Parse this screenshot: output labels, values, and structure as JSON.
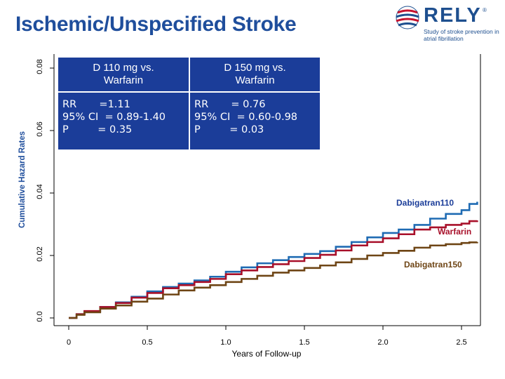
{
  "header": {
    "title": "Ischemic/Unspecified Stroke"
  },
  "logo": {
    "word": "RELY",
    "reg": "®",
    "tagline": "Study of stroke prevention in atrial fibrillation"
  },
  "colors": {
    "title": "#1f4e9c",
    "box": "#1b3d99",
    "dabigatran110": "#1f6bb3",
    "warfarin": "#a8102a",
    "dabigatran150": "#6e4515"
  },
  "boxes": [
    {
      "heading": "D 110 mg vs.\nWarfarin",
      "body": "RR       =1.11\n95% CI  = 0.89-1.40\nP         = 0.35"
    },
    {
      "heading": "D 150 mg vs.\nWarfarin",
      "body": "RR       = 0.76\n95% CI  = 0.60-0.98\nP         = 0.03"
    }
  ],
  "chart_data": {
    "type": "line",
    "title": "Ischemic/Unspecified Stroke",
    "xlabel": "Years of Follow-up",
    "ylabel": "Cumulative Hazard Rates",
    "xlim": [
      0,
      2.6
    ],
    "ylim": [
      0,
      0.08
    ],
    "x_ticks": [
      "0",
      "0.5",
      "1.0",
      "1.5",
      "2.0",
      "2.5"
    ],
    "y_ticks": [
      "0.0",
      "0.02",
      "0.04",
      "0.06",
      "0.08"
    ],
    "grid": false,
    "series": [
      {
        "name": "Dabigatran110",
        "x": [
          0,
          0.05,
          0.1,
          0.2,
          0.3,
          0.4,
          0.5,
          0.6,
          0.7,
          0.8,
          0.9,
          1.0,
          1.1,
          1.2,
          1.3,
          1.4,
          1.5,
          1.6,
          1.7,
          1.8,
          1.9,
          2.0,
          2.1,
          2.2,
          2.3,
          2.4,
          2.5,
          2.55,
          2.6
        ],
        "y": [
          0,
          0.0012,
          0.002,
          0.0035,
          0.005,
          0.0068,
          0.0085,
          0.0099,
          0.011,
          0.012,
          0.0132,
          0.0148,
          0.0162,
          0.0175,
          0.0185,
          0.0195,
          0.0205,
          0.0214,
          0.0228,
          0.0243,
          0.0258,
          0.0272,
          0.0283,
          0.0298,
          0.0318,
          0.0333,
          0.0345,
          0.0365,
          0.0372
        ]
      },
      {
        "name": "Warfarin",
        "x": [
          0,
          0.05,
          0.1,
          0.2,
          0.3,
          0.4,
          0.5,
          0.6,
          0.7,
          0.8,
          0.9,
          1.0,
          1.1,
          1.2,
          1.3,
          1.4,
          1.5,
          1.6,
          1.7,
          1.8,
          1.9,
          2.0,
          2.1,
          2.2,
          2.3,
          2.4,
          2.5,
          2.55,
          2.6
        ],
        "y": [
          0,
          0.0012,
          0.0022,
          0.0035,
          0.0048,
          0.0065,
          0.008,
          0.0095,
          0.0105,
          0.0115,
          0.0125,
          0.014,
          0.0152,
          0.0163,
          0.0172,
          0.0182,
          0.0192,
          0.0202,
          0.0216,
          0.0232,
          0.0243,
          0.0255,
          0.0268,
          0.0283,
          0.029,
          0.0298,
          0.0302,
          0.031,
          0.0312
        ]
      },
      {
        "name": "Dabigatran150",
        "x": [
          0,
          0.05,
          0.1,
          0.2,
          0.3,
          0.4,
          0.5,
          0.6,
          0.7,
          0.8,
          0.9,
          1.0,
          1.1,
          1.2,
          1.3,
          1.4,
          1.5,
          1.6,
          1.7,
          1.8,
          1.9,
          2.0,
          2.1,
          2.2,
          2.3,
          2.4,
          2.5,
          2.55,
          2.6
        ],
        "y": [
          0,
          0.001,
          0.0018,
          0.003,
          0.004,
          0.0052,
          0.0062,
          0.0075,
          0.0088,
          0.0097,
          0.0105,
          0.0115,
          0.0125,
          0.0135,
          0.0145,
          0.0152,
          0.016,
          0.0168,
          0.0178,
          0.0189,
          0.02,
          0.0208,
          0.0215,
          0.0225,
          0.0232,
          0.0236,
          0.024,
          0.0242,
          0.0243
        ]
      }
    ],
    "annotations": [
      "Dabigatran110",
      "Warfarin",
      "Dabigatran150"
    ]
  }
}
